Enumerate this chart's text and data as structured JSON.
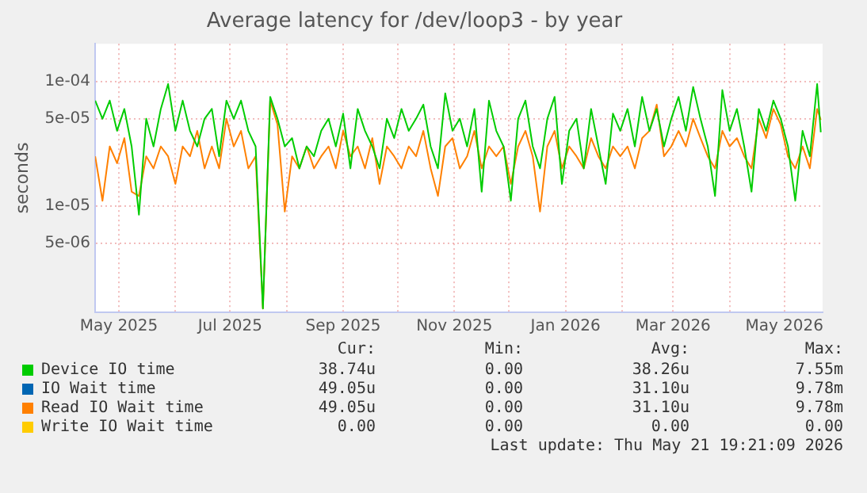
{
  "chart_data": {
    "type": "line",
    "title": "Average latency for /dev/loop3 - by year",
    "ylabel": "seconds",
    "log": "y",
    "grid": true,
    "legend": "bottom",
    "marker": "none",
    "line_style": "solid",
    "xlim": [
      "2025-04-18",
      "2026-05-22"
    ],
    "xticks": [
      {
        "value": "2025-05-01",
        "label": "May 2025"
      },
      {
        "value": "2025-06-01",
        "label": null
      },
      {
        "value": "2025-07-01",
        "label": "Jul 2025"
      },
      {
        "value": "2025-08-01",
        "label": null
      },
      {
        "value": "2025-09-01",
        "label": "Sep 2025"
      },
      {
        "value": "2025-10-01",
        "label": null
      },
      {
        "value": "2025-11-01",
        "label": "Nov 2025"
      },
      {
        "value": "2025-12-01",
        "label": null
      },
      {
        "value": "2026-01-01",
        "label": "Jan 2026"
      },
      {
        "value": "2026-02-01",
        "label": null
      },
      {
        "value": "2026-03-01",
        "label": "Mar 2026"
      },
      {
        "value": "2026-04-01",
        "label": null
      },
      {
        "value": "2026-05-01",
        "label": "May 2026"
      }
    ],
    "ylim": [
      1.4e-06,
      0.0002
    ],
    "yticks": [
      {
        "value": 5e-06,
        "label": "5e-06"
      },
      {
        "value": 1e-05,
        "label": "1e-05"
      },
      {
        "value": 5e-05,
        "label": "5e-05"
      },
      {
        "value": 0.0001,
        "label": "1e-04"
      }
    ],
    "x": [
      "2025-04-18",
      "2025-04-22",
      "2025-04-26",
      "2025-04-30",
      "2025-05-04",
      "2025-05-08",
      "2025-05-12",
      "2025-05-16",
      "2025-05-20",
      "2025-05-24",
      "2025-05-28",
      "2025-06-01",
      "2025-06-05",
      "2025-06-09",
      "2025-06-13",
      "2025-06-17",
      "2025-06-21",
      "2025-06-25",
      "2025-06-29",
      "2025-07-03",
      "2025-07-07",
      "2025-07-11",
      "2025-07-15",
      "2025-07-19",
      "2025-07-23",
      "2025-07-27",
      "2025-07-31",
      "2025-08-04",
      "2025-08-08",
      "2025-08-12",
      "2025-08-16",
      "2025-08-20",
      "2025-08-24",
      "2025-08-28",
      "2025-09-01",
      "2025-09-05",
      "2025-09-09",
      "2025-09-13",
      "2025-09-17",
      "2025-09-21",
      "2025-09-25",
      "2025-09-29",
      "2025-10-03",
      "2025-10-07",
      "2025-10-11",
      "2025-10-15",
      "2025-10-19",
      "2025-10-23",
      "2025-10-27",
      "2025-10-31",
      "2025-11-04",
      "2025-11-08",
      "2025-11-12",
      "2025-11-16",
      "2025-11-20",
      "2025-11-24",
      "2025-11-28",
      "2025-12-02",
      "2025-12-06",
      "2025-12-10",
      "2025-12-14",
      "2025-12-18",
      "2025-12-22",
      "2025-12-26",
      "2025-12-30",
      "2026-01-03",
      "2026-01-07",
      "2026-01-11",
      "2026-01-15",
      "2026-01-19",
      "2026-01-23",
      "2026-01-27",
      "2026-01-31",
      "2026-02-04",
      "2026-02-08",
      "2026-02-12",
      "2026-02-16",
      "2026-02-20",
      "2026-02-24",
      "2026-02-28",
      "2026-03-04",
      "2026-03-08",
      "2026-03-12",
      "2026-03-16",
      "2026-03-20",
      "2026-03-24",
      "2026-03-28",
      "2026-04-01",
      "2026-04-05",
      "2026-04-09",
      "2026-04-13",
      "2026-04-17",
      "2026-04-21",
      "2026-04-25",
      "2026-04-29",
      "2026-05-03",
      "2026-05-07",
      "2026-05-11",
      "2026-05-15",
      "2026-05-19",
      "2026-05-21"
    ],
    "series": [
      {
        "name": "Device IO time",
        "color": "#00cc00",
        "values": [
          7e-05,
          5e-05,
          7e-05,
          4e-05,
          6e-05,
          3e-05,
          8.5e-06,
          5e-05,
          3e-05,
          6e-05,
          9.5e-05,
          4e-05,
          7e-05,
          4e-05,
          3e-05,
          5e-05,
          6e-05,
          2.5e-05,
          7e-05,
          5e-05,
          7e-05,
          4e-05,
          3e-05,
          1.5e-06,
          7.5e-05,
          5e-05,
          3e-05,
          3.5e-05,
          2e-05,
          3e-05,
          2.5e-05,
          4e-05,
          5e-05,
          3e-05,
          5.5e-05,
          2e-05,
          6e-05,
          4e-05,
          3e-05,
          2e-05,
          5e-05,
          3.5e-05,
          6e-05,
          4e-05,
          5e-05,
          6.5e-05,
          3e-05,
          2e-05,
          8e-05,
          4e-05,
          5e-05,
          3e-05,
          6e-05,
          1.3e-05,
          7e-05,
          4e-05,
          3e-05,
          1.1e-05,
          5e-05,
          7e-05,
          3e-05,
          2e-05,
          5e-05,
          7.5e-05,
          1.5e-05,
          4e-05,
          5e-05,
          2e-05,
          6e-05,
          3e-05,
          1.5e-05,
          5.5e-05,
          4e-05,
          6e-05,
          3e-05,
          7.5e-05,
          4e-05,
          6e-05,
          3e-05,
          5e-05,
          7.5e-05,
          4e-05,
          9e-05,
          5e-05,
          3e-05,
          1.2e-05,
          8.5e-05,
          4e-05,
          6e-05,
          3e-05,
          1.3e-05,
          6e-05,
          4e-05,
          7e-05,
          5e-05,
          3e-05,
          1.1e-05,
          4e-05,
          2.5e-05,
          9.5e-05,
          3.9e-05
        ]
      },
      {
        "name": "IO Wait time",
        "color": "#0066b3",
        "values": [
          null,
          null,
          null,
          null,
          null,
          null,
          null,
          null,
          null,
          null,
          null,
          null,
          null,
          null,
          null,
          null,
          null,
          null,
          null,
          null,
          null,
          null,
          null,
          null,
          null,
          null,
          null,
          null,
          null,
          null,
          null,
          null,
          null,
          null,
          null,
          null,
          null,
          null,
          null,
          null,
          null,
          null,
          null,
          null,
          null,
          null,
          null,
          null,
          null,
          null,
          null,
          null,
          null,
          null,
          null,
          null,
          null,
          null,
          null,
          null,
          null,
          null,
          null,
          null,
          null,
          null,
          null,
          null,
          null,
          null,
          null,
          null,
          null,
          null,
          null,
          null,
          null,
          null,
          null,
          null,
          null,
          null,
          null,
          null,
          null,
          null,
          null,
          null,
          null,
          null,
          null,
          null,
          null,
          null,
          null,
          null,
          null,
          null,
          null,
          null,
          null
        ]
      },
      {
        "name": "Read IO Wait time",
        "color": "#ff8000",
        "values": [
          2.5e-05,
          1.1e-05,
          3e-05,
          2.2e-05,
          3.5e-05,
          1.3e-05,
          1.2e-05,
          2.5e-05,
          2e-05,
          3e-05,
          2.5e-05,
          1.5e-05,
          3e-05,
          2.5e-05,
          4e-05,
          2e-05,
          3e-05,
          2e-05,
          5e-05,
          3e-05,
          4e-05,
          2e-05,
          2.5e-05,
          1.5e-06,
          7e-05,
          4.5e-05,
          9e-06,
          2.5e-05,
          2e-05,
          3e-05,
          2e-05,
          2.5e-05,
          3e-05,
          2e-05,
          4e-05,
          2.5e-05,
          3e-05,
          2e-05,
          3.5e-05,
          1.5e-05,
          3e-05,
          2.5e-05,
          2e-05,
          3e-05,
          2.5e-05,
          4e-05,
          2e-05,
          1.2e-05,
          3e-05,
          3.5e-05,
          2e-05,
          2.5e-05,
          4e-05,
          2e-05,
          3e-05,
          2.5e-05,
          3e-05,
          1.5e-05,
          3e-05,
          4e-05,
          2.5e-05,
          9e-06,
          3e-05,
          4e-05,
          2e-05,
          3e-05,
          2.5e-05,
          2e-05,
          3.5e-05,
          2.5e-05,
          2e-05,
          3e-05,
          2.5e-05,
          3e-05,
          2e-05,
          3.5e-05,
          4e-05,
          6.5e-05,
          2.5e-05,
          3e-05,
          4e-05,
          3e-05,
          5e-05,
          3.5e-05,
          2.5e-05,
          2e-05,
          4e-05,
          3e-05,
          3.5e-05,
          2.5e-05,
          2e-05,
          5e-05,
          3.5e-05,
          6e-05,
          4.5e-05,
          2.5e-05,
          2e-05,
          3e-05,
          2e-05,
          6e-05,
          4.9e-05
        ]
      },
      {
        "name": "Write IO Wait time",
        "color": "#ffcc00",
        "values": [
          null,
          null,
          null,
          null,
          null,
          null,
          null,
          null,
          null,
          null,
          null,
          null,
          null,
          null,
          null,
          null,
          null,
          null,
          null,
          null,
          null,
          null,
          null,
          null,
          null,
          null,
          null,
          null,
          null,
          null,
          null,
          null,
          null,
          null,
          null,
          null,
          null,
          null,
          null,
          null,
          null,
          null,
          null,
          null,
          null,
          null,
          null,
          null,
          null,
          null,
          null,
          null,
          null,
          null,
          null,
          null,
          null,
          null,
          null,
          null,
          null,
          null,
          null,
          null,
          null,
          null,
          null,
          null,
          null,
          null,
          null,
          null,
          null,
          null,
          null,
          null,
          null,
          null,
          null,
          null,
          null,
          null,
          null,
          null,
          null,
          null,
          null,
          null,
          null,
          null,
          null,
          null,
          null,
          null,
          null,
          null,
          null,
          null,
          null,
          null,
          null
        ]
      }
    ],
    "annotations": [
      "Cur:",
      "Min:",
      "Avg:",
      "Max:",
      "38.74u",
      "0.00",
      "38.26u",
      "7.55m",
      "49.05u",
      "0.00",
      "31.10u",
      "9.78m",
      "49.05u",
      "0.00",
      "31.10u",
      "9.78m",
      "0.00",
      "0.00",
      "0.00",
      "0.00",
      "Last update: Thu May 21 19:21:09 2026"
    ]
  }
}
